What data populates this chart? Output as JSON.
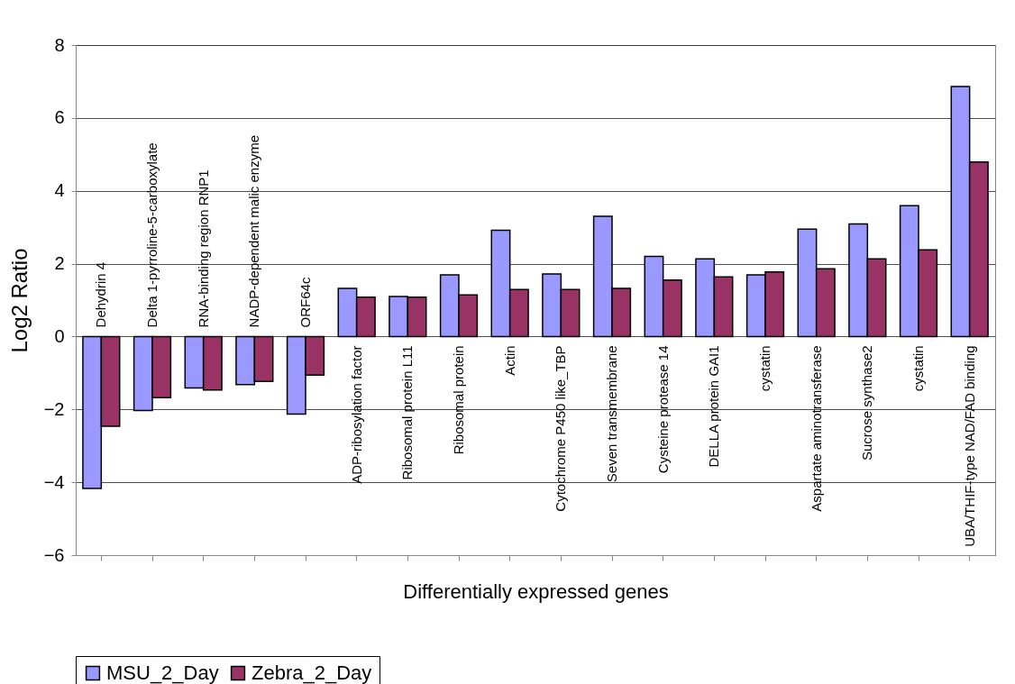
{
  "chart_data": {
    "type": "bar",
    "xlabel": "Differentially expressed genes",
    "ylabel": "Log2 Ratio",
    "categories": [
      "Dehydrin 4",
      "Delta 1-pyrroline-5-carboxylate",
      "RNA-binding region RNP1",
      "NADP-dependent malic enzyme",
      "ORF64c",
      "ADP-ribosylation factor",
      "Ribosomal protein L11",
      "Ribosomal protein",
      "Actin",
      "Cytochrome P450 like_TBP",
      "Seven transmembrane",
      "Cysteine protease 14",
      "DELLA protein GAI1",
      "cystatin",
      "Aspartate aminotransferase",
      "Sucrose synthase2",
      "cystatin",
      "UBA/THIF-type NAD/FAD binding"
    ],
    "series": [
      {
        "name": "MSU_2_Day",
        "color": "#9999ff",
        "values": [
          -4.17,
          -2.03,
          -1.41,
          -1.32,
          -2.13,
          1.32,
          1.1,
          1.69,
          2.92,
          1.72,
          3.3,
          2.2,
          2.13,
          1.69,
          2.95,
          3.09,
          3.59,
          6.86
        ]
      },
      {
        "name": "Zebra_2_Day",
        "color": "#993366",
        "values": [
          -2.46,
          -1.68,
          -1.47,
          -1.23,
          -1.06,
          1.08,
          1.08,
          1.14,
          1.29,
          1.29,
          1.32,
          1.55,
          1.64,
          1.77,
          1.86,
          2.13,
          2.38,
          4.79
        ]
      }
    ],
    "ylim": [
      -6,
      8
    ],
    "yticks": [
      -6,
      -4,
      -2,
      0,
      2,
      4,
      6,
      8
    ],
    "grid": "y",
    "legend": "bottom"
  }
}
